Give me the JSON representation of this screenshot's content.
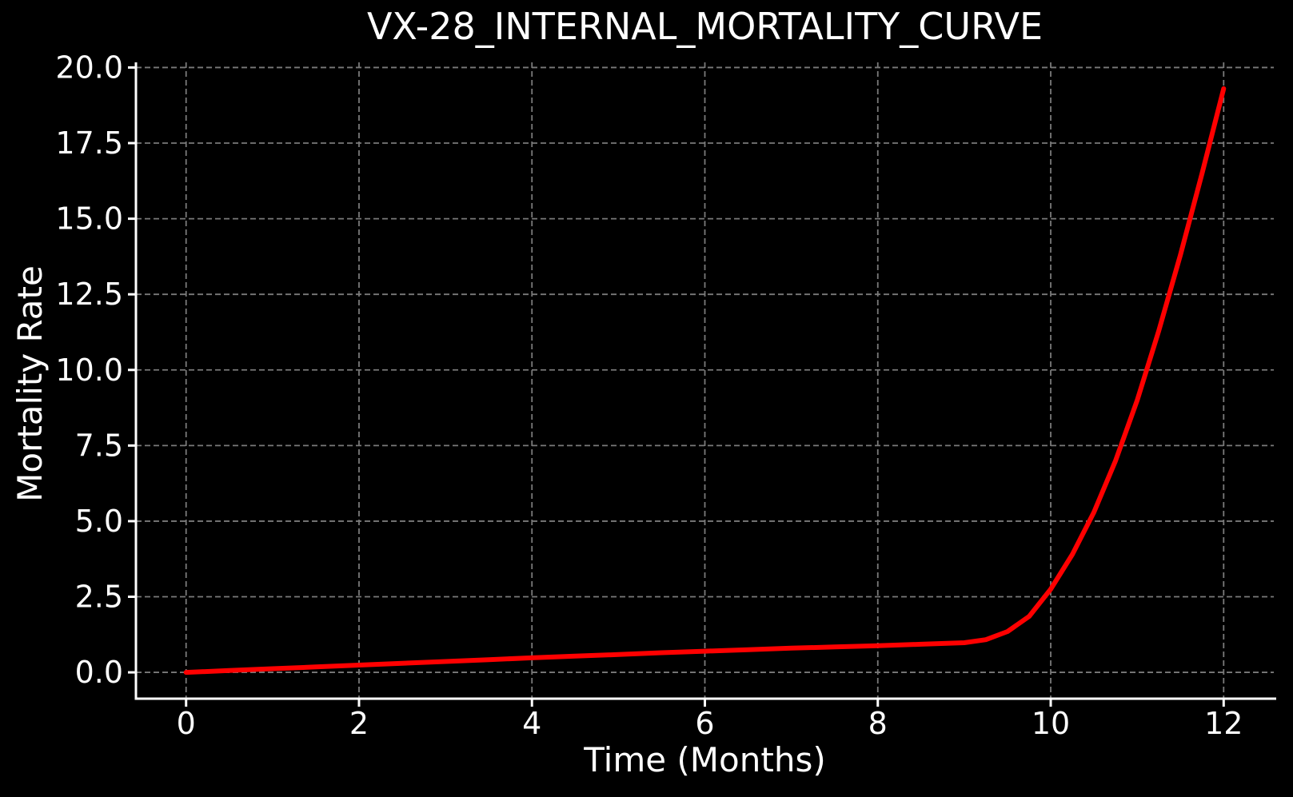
{
  "chart_data": {
    "type": "line",
    "title": "VX-28_INTERNAL_MORTALITY_CURVE",
    "xlabel": "Time (Months)",
    "ylabel": "Mortality Rate",
    "xlim": [
      -0.58,
      12.58
    ],
    "ylim": [
      -0.87,
      20.17
    ],
    "xticks": [
      0,
      2,
      4,
      6,
      8,
      10,
      12
    ],
    "xtick_labels": [
      "0",
      "2",
      "4",
      "6",
      "8",
      "10",
      "12"
    ],
    "yticks": [
      0,
      2.5,
      5,
      7.5,
      10,
      12.5,
      15,
      17.5,
      20
    ],
    "ytick_labels": [
      "0.0",
      "2.5",
      "5.0",
      "7.5",
      "10.0",
      "12.5",
      "15.0",
      "17.5",
      "20.0"
    ],
    "grid": "dashed",
    "legend": "none",
    "colors": {
      "background": "#000000",
      "text": "#ffffff",
      "grid": "#7a7a7a",
      "spine": "#ffffff",
      "curve": "#ff0000"
    },
    "series": [
      {
        "name": "mortality_rate",
        "color": "#ff0000",
        "x": [
          0,
          0.5,
          1,
          1.5,
          2,
          2.5,
          3,
          3.5,
          4,
          4.5,
          5,
          5.5,
          6,
          6.5,
          7,
          7.5,
          8,
          8.5,
          9,
          9.25,
          9.5,
          9.75,
          10,
          10.25,
          10.5,
          10.75,
          11,
          11.25,
          11.5,
          11.75,
          12
        ],
        "y": [
          0,
          0.06,
          0.12,
          0.18,
          0.24,
          0.3,
          0.36,
          0.42,
          0.48,
          0.54,
          0.59,
          0.65,
          0.7,
          0.75,
          0.8,
          0.84,
          0.88,
          0.93,
          0.98,
          1.08,
          1.35,
          1.85,
          2.75,
          3.9,
          5.3,
          7.0,
          9.0,
          11.3,
          13.8,
          16.5,
          19.3
        ]
      }
    ]
  }
}
